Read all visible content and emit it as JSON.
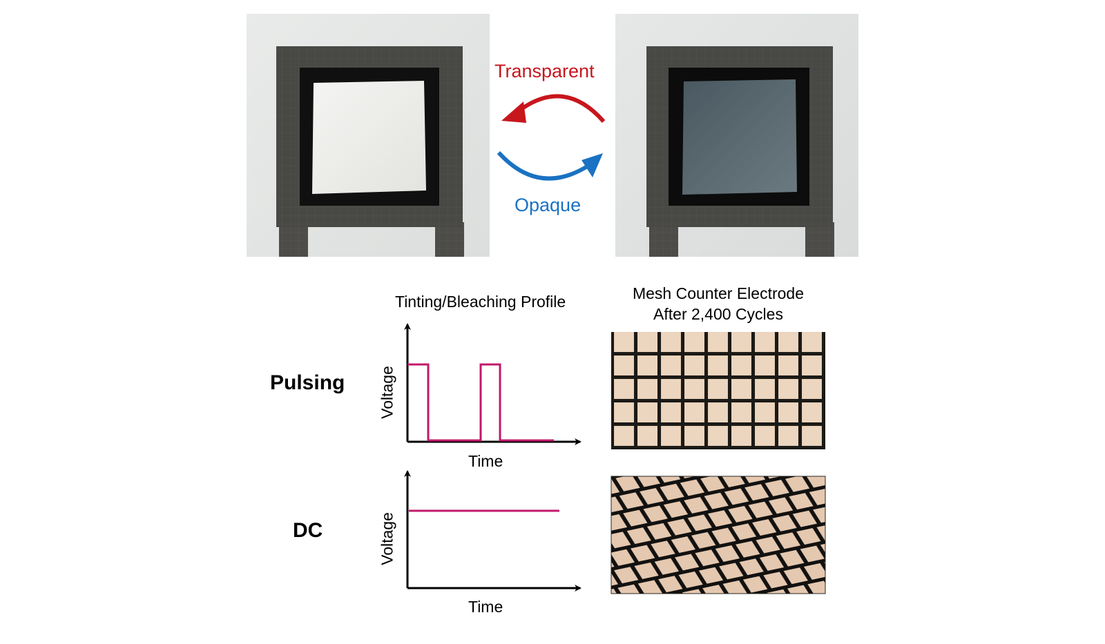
{
  "top": {
    "transparent_label": "Transparent",
    "opaque_label": "Opaque",
    "colors": {
      "transparent_arrow": "#c8161d",
      "opaque_arrow": "#1a72c2"
    }
  },
  "profile": {
    "title": "Tinting/Bleaching Profile",
    "pulsing": {
      "row_label": "Pulsing",
      "ylabel": "Voltage",
      "xlabel": "Time"
    },
    "dc": {
      "row_label": "DC",
      "ylabel": "Voltage",
      "xlabel": "Time"
    },
    "trace_color": "#c2186b"
  },
  "mesh": {
    "title_line1": "Mesh Counter Electrode",
    "title_line2": "After 2,400 Cycles"
  }
}
